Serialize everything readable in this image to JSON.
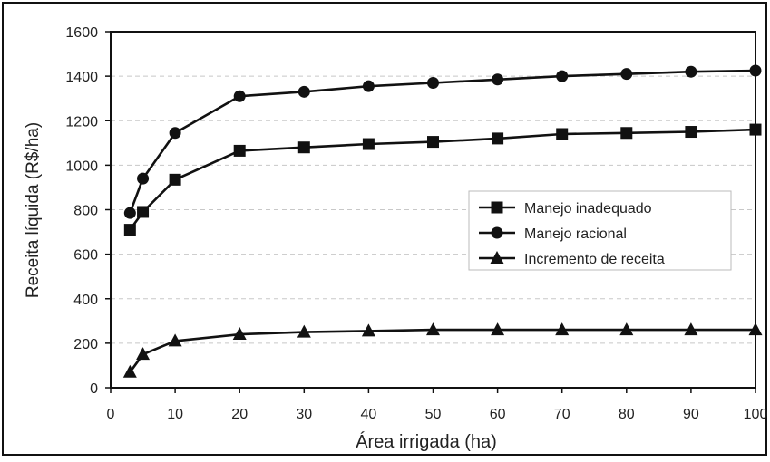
{
  "chart_data": {
    "type": "line",
    "xlabel": "Área irrigada (ha)",
    "ylabel": "Receita líquida (R$/ha)",
    "xlim": [
      0,
      100
    ],
    "ylim": [
      0,
      1600
    ],
    "xticks": [
      0,
      10,
      20,
      30,
      40,
      50,
      60,
      70,
      80,
      90,
      100
    ],
    "yticks": [
      0,
      200,
      400,
      600,
      800,
      1000,
      1200,
      1400,
      1600
    ],
    "grid": "horizontal-dashed",
    "legend_position": "right-middle",
    "x": [
      3,
      5,
      10,
      20,
      30,
      40,
      50,
      60,
      70,
      80,
      90,
      100
    ],
    "series": [
      {
        "name": "Manejo inadequado",
        "marker": "square",
        "values": [
          710,
          790,
          935,
          1065,
          1080,
          1095,
          1105,
          1120,
          1140,
          1145,
          1150,
          1160
        ]
      },
      {
        "name": "Manejo racional",
        "marker": "circle",
        "values": [
          785,
          940,
          1145,
          1310,
          1330,
          1355,
          1370,
          1385,
          1400,
          1410,
          1420,
          1425
        ]
      },
      {
        "name": "Incremento de receita",
        "marker": "triangle",
        "values": [
          70,
          150,
          210,
          240,
          250,
          255,
          260,
          260,
          260,
          260,
          260,
          260
        ]
      }
    ]
  }
}
